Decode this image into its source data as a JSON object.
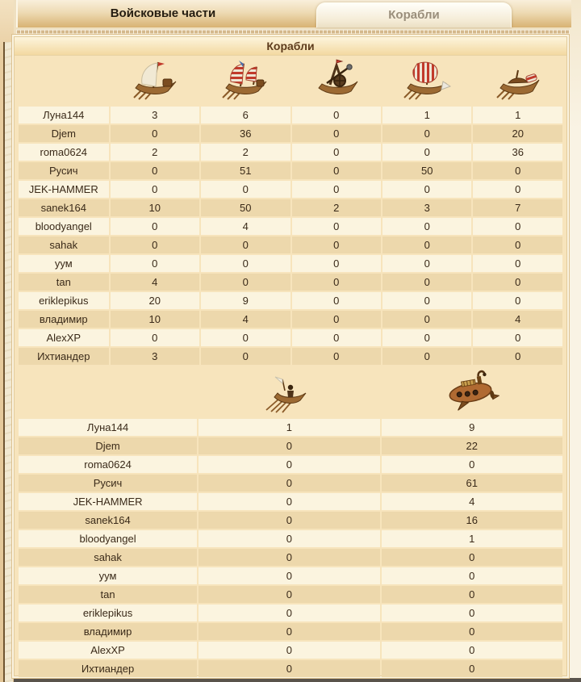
{
  "tab_bar": {
    "tabs": [
      {
        "id": "troops",
        "label": "Войсковые части",
        "active": false
      },
      {
        "id": "ships",
        "label": "Корабли",
        "active": true
      }
    ]
  },
  "panel": {
    "title": "Корабли"
  },
  "ships_table_1": {
    "icon_columns": [
      "merchant-sail-ship",
      "striped-sail-warship",
      "catapult-ship",
      "ram-ship",
      "oared-warship"
    ],
    "rows": [
      {
        "name": "Луна144",
        "values": [
          "3",
          "6",
          "0",
          "1",
          "1"
        ]
      },
      {
        "name": "Djem",
        "values": [
          "0",
          "36",
          "0",
          "0",
          "20"
        ]
      },
      {
        "name": "roma0624",
        "values": [
          "2",
          "2",
          "0",
          "0",
          "36"
        ]
      },
      {
        "name": "Русич",
        "values": [
          "0",
          "51",
          "0",
          "50",
          "0"
        ]
      },
      {
        "name": "JEK-HAMMER",
        "values": [
          "0",
          "0",
          "0",
          "0",
          "0"
        ]
      },
      {
        "name": "sanek164",
        "values": [
          "10",
          "50",
          "2",
          "3",
          "7"
        ]
      },
      {
        "name": "bloodyangel",
        "values": [
          "0",
          "4",
          "0",
          "0",
          "0"
        ]
      },
      {
        "name": "sahak",
        "values": [
          "0",
          "0",
          "0",
          "0",
          "0"
        ]
      },
      {
        "name": "уум",
        "values": [
          "0",
          "0",
          "0",
          "0",
          "0"
        ]
      },
      {
        "name": "tan",
        "values": [
          "4",
          "0",
          "0",
          "0",
          "0"
        ]
      },
      {
        "name": "eriklepikus",
        "values": [
          "20",
          "9",
          "0",
          "0",
          "0"
        ]
      },
      {
        "name": "владимир",
        "values": [
          "10",
          "4",
          "0",
          "0",
          "4"
        ]
      },
      {
        "name": "AlexXP",
        "values": [
          "0",
          "0",
          "0",
          "0",
          "0"
        ]
      },
      {
        "name": "Ихтиандер",
        "values": [
          "3",
          "0",
          "0",
          "0",
          "0"
        ]
      }
    ]
  },
  "ships_table_2": {
    "icon_columns": [
      "rowboat",
      "submarine"
    ],
    "rows": [
      {
        "name": "Луна144",
        "values": [
          "1",
          "9"
        ]
      },
      {
        "name": "Djem",
        "values": [
          "0",
          "22"
        ]
      },
      {
        "name": "roma0624",
        "values": [
          "0",
          "0"
        ]
      },
      {
        "name": "Русич",
        "values": [
          "0",
          "61"
        ]
      },
      {
        "name": "JEK-HAMMER",
        "values": [
          "0",
          "4"
        ]
      },
      {
        "name": "sanek164",
        "values": [
          "0",
          "16"
        ]
      },
      {
        "name": "bloodyangel",
        "values": [
          "0",
          "1"
        ]
      },
      {
        "name": "sahak",
        "values": [
          "0",
          "0"
        ]
      },
      {
        "name": "уум",
        "values": [
          "0",
          "0"
        ]
      },
      {
        "name": "tan",
        "values": [
          "0",
          "0"
        ]
      },
      {
        "name": "eriklepikus",
        "values": [
          "0",
          "0"
        ]
      },
      {
        "name": "владимир",
        "values": [
          "0",
          "0"
        ]
      },
      {
        "name": "AlexXP",
        "values": [
          "0",
          "0"
        ]
      },
      {
        "name": "Ихтиандер",
        "values": [
          "0",
          "0"
        ]
      }
    ]
  },
  "colors": {
    "row_light": "#fbf4df",
    "row_dark": "#edd8ac",
    "panel_bg": "#f7e4bc",
    "tabbar_tan": "#d8b273",
    "header_text": "#5d3b1c"
  }
}
